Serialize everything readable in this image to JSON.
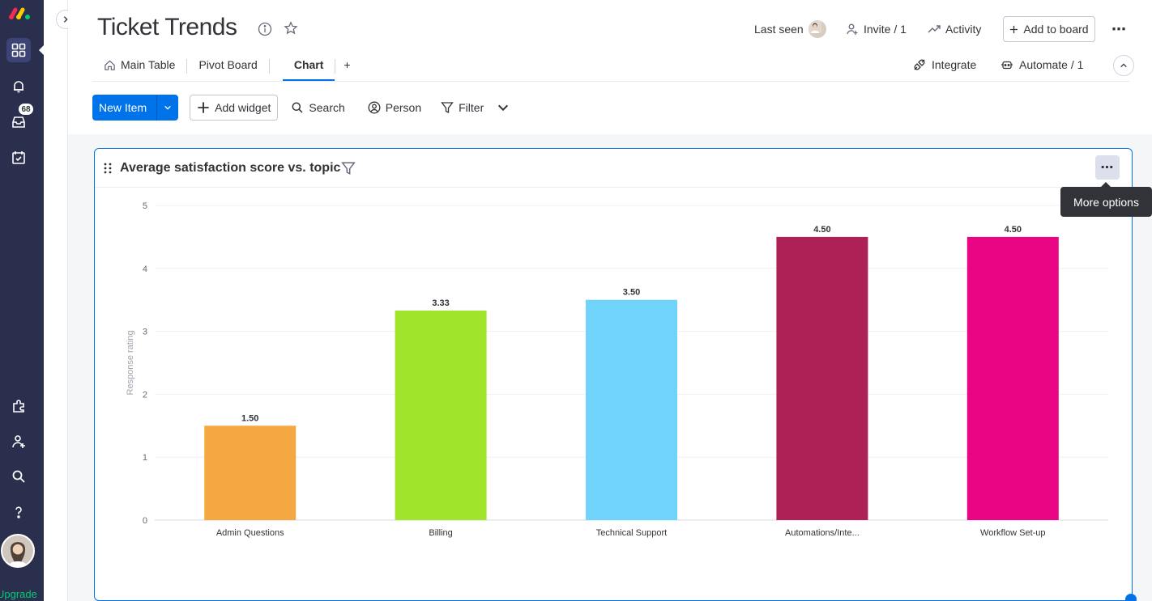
{
  "board": {
    "title": "Ticket Trends",
    "info_icon": "info-icon",
    "favorite_icon": "star-icon"
  },
  "topbar": {
    "last_seen": "Last seen",
    "invite": "Invite / 1",
    "activity": "Activity",
    "add_to_board": "Add to board"
  },
  "tabs": [
    {
      "label": "Main Table",
      "icon": "home-icon"
    },
    {
      "label": "Pivot Board"
    },
    {
      "label": "Chart",
      "active": true
    },
    {
      "label": "+"
    }
  ],
  "right_tabs": {
    "integrate": "Integrate",
    "automate": "Automate / 1"
  },
  "toolbar": {
    "new_item": "New Item",
    "add_widget": "Add widget",
    "search": "Search",
    "person": "Person",
    "filter": "Filter"
  },
  "sidebar": {
    "notifications_badge": "68",
    "upgrade": "Upgrade"
  },
  "widget": {
    "title": "Average satisfaction score vs. topic",
    "tooltip": "More options"
  },
  "colors": {
    "accent": "#0073ea",
    "rail": "#292f4c"
  },
  "chart_data": {
    "type": "bar",
    "categories": [
      "Admin Questions",
      "Billing",
      "Technical Support",
      "Automations/Inte...",
      "Workflow Set-up"
    ],
    "values": [
      1.5,
      3.33,
      3.5,
      4.5,
      4.5
    ],
    "value_labels": [
      "1.50",
      "3.33",
      "3.50",
      "4.50",
      "4.50"
    ],
    "colors": [
      "#f5a742",
      "#a0e52c",
      "#6fd3fc",
      "#ad2156",
      "#ea0585"
    ],
    "title": "Average satisfaction score vs. topic",
    "xlabel": "",
    "ylabel": "Response rating",
    "ylim": [
      0,
      5
    ],
    "yticks": [
      "0",
      "1",
      "2",
      "3",
      "4",
      "5"
    ],
    "grid": true
  }
}
